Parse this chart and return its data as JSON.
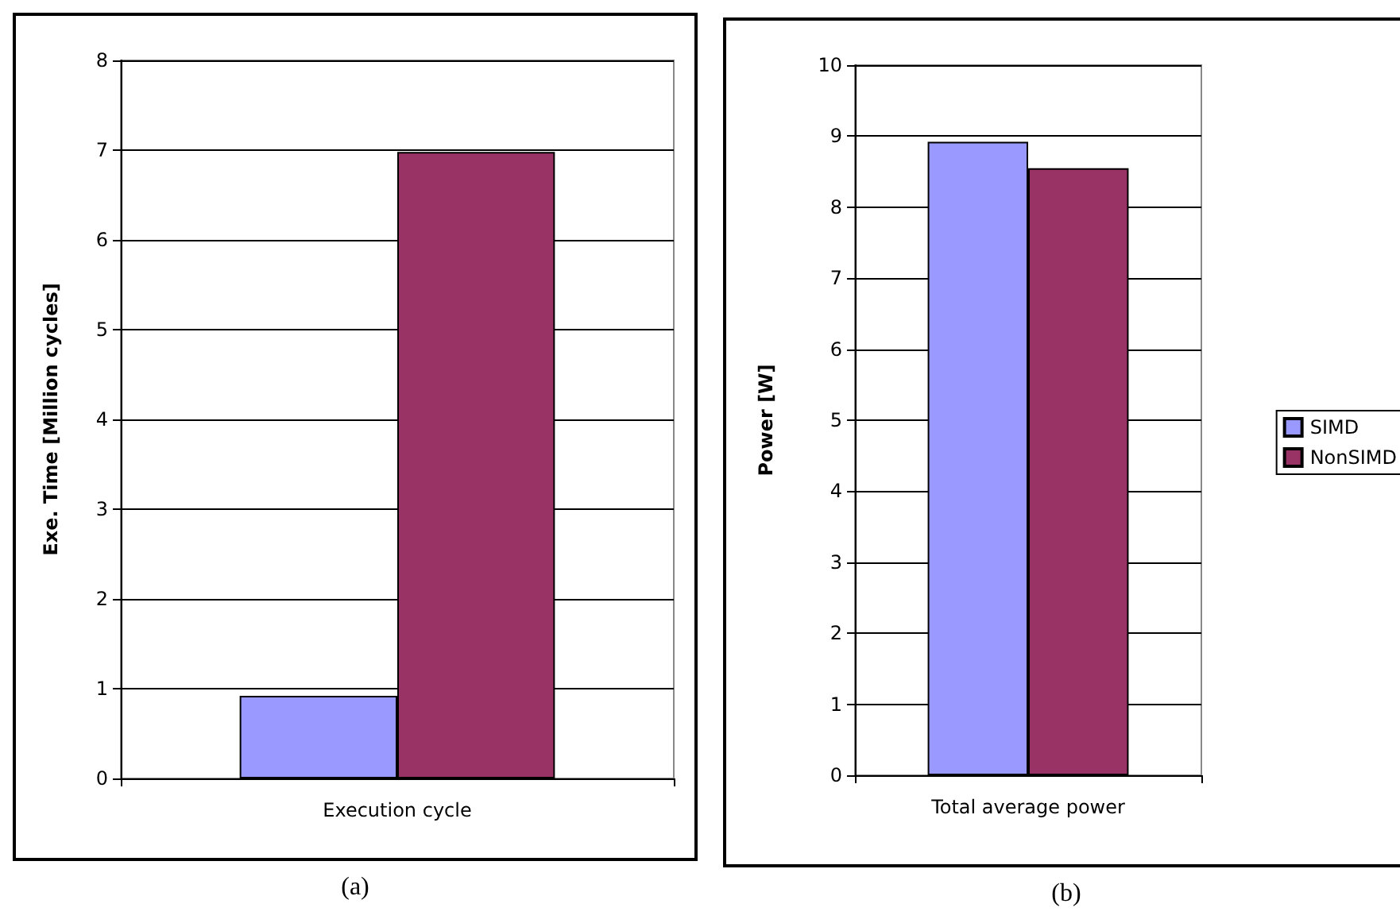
{
  "chart_data": [
    {
      "type": "bar",
      "ylabel": "Exe. Time [Million cycles]",
      "categories": [
        "Execution cycle"
      ],
      "series": [
        {
          "color": "#9999ff",
          "values": [
            0.92
          ]
        },
        {
          "color": "#993366",
          "values": [
            6.98
          ]
        }
      ],
      "ylim": [
        0,
        8
      ],
      "yticks": [
        0,
        1,
        2,
        3,
        4,
        5,
        6,
        7,
        8
      ],
      "grid": "y",
      "annotations": [
        "(a)"
      ]
    },
    {
      "type": "bar",
      "ylabel": "Power [W]",
      "categories": [
        "Total average power"
      ],
      "series": [
        {
          "name": "SIMD",
          "color": "#9999ff",
          "values": [
            8.92
          ]
        },
        {
          "name": "NonSIMD",
          "color": "#993366",
          "values": [
            8.55
          ]
        }
      ],
      "ylim": [
        0,
        10
      ],
      "yticks": [
        0,
        1,
        2,
        3,
        4,
        5,
        6,
        7,
        8,
        9,
        10
      ],
      "grid": "y",
      "legend": "right",
      "annotations": [
        "(b)"
      ]
    }
  ]
}
